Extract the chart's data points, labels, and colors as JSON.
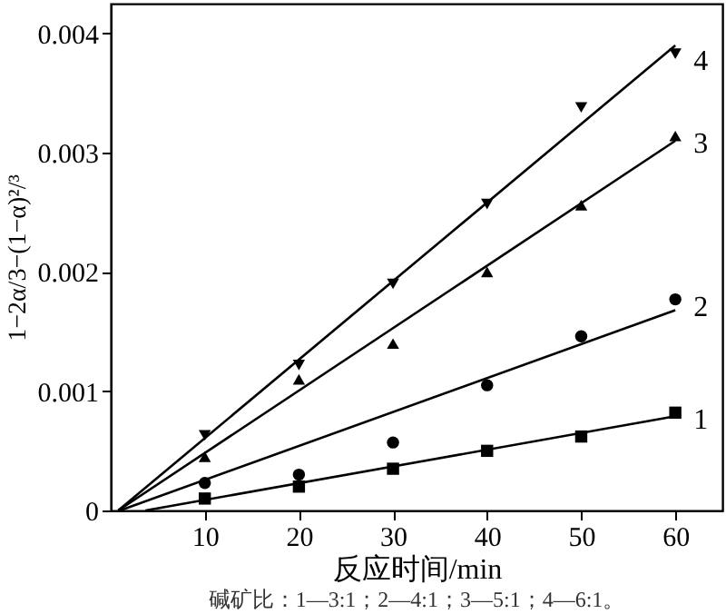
{
  "chart_data": {
    "type": "scatter",
    "xlabel": "反应时间/min",
    "ylabel": "1−2α/3−(1−α)²/³",
    "xlim": [
      0,
      65
    ],
    "ylim": [
      0,
      0.00425
    ],
    "xticks": [
      10,
      20,
      30,
      40,
      50,
      60
    ],
    "yticks": [
      0,
      0.001,
      0.002,
      0.003,
      0.004
    ],
    "grid": false,
    "series": [
      {
        "name": "1",
        "marker": "square",
        "color": "#000000",
        "x": [
          10,
          20,
          30,
          40,
          50,
          60
        ],
        "values": [
          0.0001,
          0.0002,
          0.00035,
          0.0005,
          0.00062,
          0.00082
        ]
      },
      {
        "name": "2",
        "marker": "circle",
        "color": "#000000",
        "x": [
          10,
          20,
          30,
          40,
          50,
          60
        ],
        "values": [
          0.00023,
          0.0003,
          0.00057,
          0.00105,
          0.00146,
          0.00177
        ]
      },
      {
        "name": "3",
        "marker": "triangle",
        "color": "#000000",
        "x": [
          10,
          20,
          30,
          40,
          50,
          60
        ],
        "values": [
          0.00045,
          0.0011,
          0.0014,
          0.002,
          0.00256,
          0.00314
        ]
      },
      {
        "name": "4",
        "marker": "triangle-down",
        "color": "#000000",
        "x": [
          10,
          20,
          30,
          40,
          50,
          60
        ],
        "values": [
          0.00063,
          0.00122,
          0.0019,
          0.00257,
          0.00338,
          0.00383
        ]
      },
      {
        "type": "line",
        "marker": "none",
        "line_style": "solid",
        "color": "#000000",
        "x": [
          3.7,
          60
        ],
        "values": [
          0,
          0.00079
        ]
      },
      {
        "type": "line",
        "marker": "none",
        "line_style": "solid",
        "color": "#000000",
        "x": [
          1,
          60
        ],
        "values": [
          0,
          0.00168
        ]
      },
      {
        "type": "line",
        "marker": "none",
        "line_style": "solid",
        "color": "#000000",
        "x": [
          0.8,
          60
        ],
        "values": [
          0,
          0.0031
        ]
      },
      {
        "type": "line",
        "marker": "none",
        "line_style": "solid",
        "color": "#000000",
        "x": [
          0.8,
          60
        ],
        "values": [
          0,
          0.0039
        ]
      }
    ],
    "annotations": [
      "碱矿比：1—3:1；2—4:1；3—5:1；4—6:1。"
    ]
  }
}
